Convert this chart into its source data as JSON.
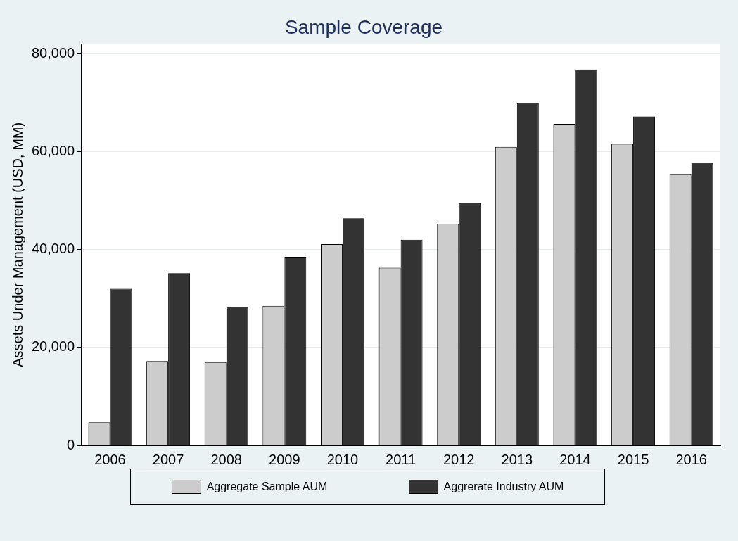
{
  "chart_data": {
    "type": "bar",
    "title": "Sample Coverage",
    "ylabel": "Assets Under Management (USD, MM)",
    "categories": [
      "2006",
      "2007",
      "2008",
      "2009",
      "2010",
      "2011",
      "2012",
      "2013",
      "2014",
      "2015",
      "2016"
    ],
    "series": [
      {
        "name": "Aggregate Sample AUM",
        "color": "#cccccc",
        "values": [
          4700,
          17200,
          17000,
          28500,
          41100,
          36300,
          45300,
          61000,
          65700,
          61600,
          55400
        ]
      },
      {
        "name": "Aggrerate Industry AUM",
        "color": "#333333",
        "values": [
          32000,
          35200,
          28200,
          38400,
          46400,
          42000,
          49500,
          69900,
          76800,
          67200,
          57700
        ]
      }
    ],
    "ylim": [
      0,
      82000
    ],
    "yticks": [
      {
        "value": 0,
        "label": "0"
      },
      {
        "value": 20000,
        "label": "20,000"
      },
      {
        "value": 40000,
        "label": "40,000"
      },
      {
        "value": 60000,
        "label": "60,000"
      },
      {
        "value": 80000,
        "label": "80,000"
      }
    ],
    "grid": "y",
    "legend": "bottom"
  }
}
